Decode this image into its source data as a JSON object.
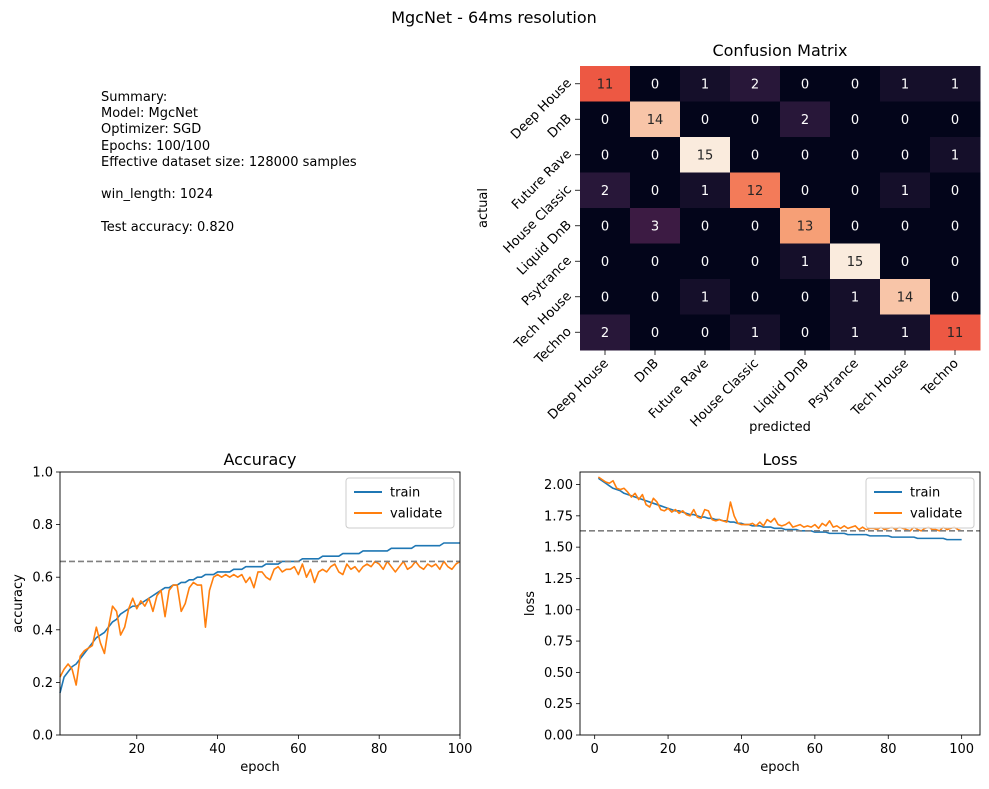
{
  "figure": {
    "suptitle": "MgcNet - 64ms resolution"
  },
  "summary": {
    "lines": [
      "Summary:",
      "Model: MgcNet",
      "Optimizer: SGD",
      "Epochs: 100/100",
      "Effective dataset size: 128000 samples",
      "",
      "win_length: 1024",
      "",
      "Test accuracy: 0.820"
    ]
  },
  "chart_data": [
    {
      "type": "heatmap",
      "title": "Confusion Matrix",
      "xlabel": "predicted",
      "ylabel": "actual",
      "x_categories": [
        "Deep House",
        "DnB",
        "Future Rave",
        "House Classic",
        "Liquid DnB",
        "Psytrance",
        "Tech House",
        "Techno"
      ],
      "y_categories": [
        "Deep House",
        "DnB",
        "Future Rave",
        "House Classic",
        "Liquid DnB",
        "Psytrance",
        "Tech House",
        "Techno"
      ],
      "values": [
        [
          11,
          0,
          1,
          2,
          0,
          0,
          1,
          1
        ],
        [
          0,
          14,
          0,
          0,
          2,
          0,
          0,
          0
        ],
        [
          0,
          0,
          15,
          0,
          0,
          0,
          0,
          1
        ],
        [
          2,
          0,
          1,
          12,
          0,
          0,
          1,
          0
        ],
        [
          0,
          3,
          0,
          0,
          13,
          0,
          0,
          0
        ],
        [
          0,
          0,
          0,
          0,
          1,
          15,
          0,
          0
        ],
        [
          0,
          0,
          1,
          0,
          0,
          1,
          14,
          0
        ],
        [
          2,
          0,
          0,
          1,
          0,
          1,
          1,
          11
        ]
      ],
      "colormap": "rocket"
    },
    {
      "type": "line",
      "title": "Accuracy",
      "xlabel": "epoch",
      "ylabel": "accuracy",
      "xlim": [
        1,
        100
      ],
      "ylim": [
        0,
        1
      ],
      "xticks": [
        20,
        40,
        60,
        80,
        100
      ],
      "yticks": [
        0.0,
        0.2,
        0.4,
        0.6,
        0.8,
        1.0
      ],
      "ytick_labels": [
        "0.0",
        "0.2",
        "0.4",
        "0.6",
        "0.8",
        "1.0"
      ],
      "reference_line": {
        "y": 0.66,
        "style": "dashed",
        "color": "#808080"
      },
      "legend_position": "top-right",
      "series": [
        {
          "name": "train",
          "color": "#1f77b4",
          "values": [
            0.16,
            0.22,
            0.24,
            0.26,
            0.27,
            0.29,
            0.31,
            0.33,
            0.35,
            0.37,
            0.38,
            0.39,
            0.41,
            0.43,
            0.44,
            0.46,
            0.47,
            0.48,
            0.49,
            0.49,
            0.5,
            0.51,
            0.52,
            0.53,
            0.54,
            0.55,
            0.56,
            0.56,
            0.57,
            0.57,
            0.58,
            0.58,
            0.59,
            0.59,
            0.6,
            0.6,
            0.61,
            0.61,
            0.61,
            0.62,
            0.62,
            0.62,
            0.62,
            0.63,
            0.63,
            0.63,
            0.64,
            0.64,
            0.64,
            0.64,
            0.64,
            0.65,
            0.65,
            0.65,
            0.65,
            0.66,
            0.66,
            0.66,
            0.66,
            0.66,
            0.67,
            0.67,
            0.67,
            0.67,
            0.67,
            0.68,
            0.68,
            0.68,
            0.68,
            0.68,
            0.69,
            0.69,
            0.69,
            0.69,
            0.69,
            0.7,
            0.7,
            0.7,
            0.7,
            0.7,
            0.7,
            0.7,
            0.71,
            0.71,
            0.71,
            0.71,
            0.71,
            0.71,
            0.72,
            0.72,
            0.72,
            0.72,
            0.72,
            0.72,
            0.72,
            0.73,
            0.73,
            0.73,
            0.73,
            0.73
          ]
        },
        {
          "name": "validate",
          "color": "#ff7f0e",
          "values": [
            0.22,
            0.25,
            0.27,
            0.25,
            0.19,
            0.3,
            0.32,
            0.33,
            0.34,
            0.41,
            0.35,
            0.31,
            0.41,
            0.49,
            0.47,
            0.38,
            0.41,
            0.48,
            0.52,
            0.48,
            0.51,
            0.49,
            0.52,
            0.47,
            0.53,
            0.55,
            0.45,
            0.55,
            0.57,
            0.57,
            0.47,
            0.5,
            0.56,
            0.58,
            0.57,
            0.57,
            0.41,
            0.55,
            0.6,
            0.61,
            0.6,
            0.61,
            0.6,
            0.61,
            0.6,
            0.61,
            0.58,
            0.6,
            0.56,
            0.62,
            0.62,
            0.6,
            0.59,
            0.63,
            0.64,
            0.62,
            0.63,
            0.63,
            0.64,
            0.61,
            0.65,
            0.6,
            0.63,
            0.58,
            0.62,
            0.63,
            0.62,
            0.64,
            0.65,
            0.62,
            0.61,
            0.65,
            0.63,
            0.64,
            0.62,
            0.64,
            0.65,
            0.64,
            0.66,
            0.65,
            0.63,
            0.66,
            0.64,
            0.62,
            0.64,
            0.66,
            0.63,
            0.64,
            0.66,
            0.64,
            0.63,
            0.65,
            0.64,
            0.65,
            0.63,
            0.66,
            0.64,
            0.63,
            0.65,
            0.66
          ]
        }
      ]
    },
    {
      "type": "line",
      "title": "Loss",
      "xlabel": "epoch",
      "ylabel": "loss",
      "xlim": [
        -4,
        105
      ],
      "ylim": [
        0,
        2.1
      ],
      "xticks": [
        0,
        20,
        40,
        60,
        80,
        100
      ],
      "yticks": [
        0.0,
        0.25,
        0.5,
        0.75,
        1.0,
        1.25,
        1.5,
        1.75,
        2.0
      ],
      "ytick_labels": [
        "0.00",
        "0.25",
        "0.50",
        "0.75",
        "1.00",
        "1.25",
        "1.50",
        "1.75",
        "2.00"
      ],
      "reference_line": {
        "y": 1.63,
        "style": "dashed",
        "color": "#808080"
      },
      "legend_position": "top-right",
      "series": [
        {
          "name": "train",
          "color": "#1f77b4",
          "values": [
            2.05,
            2.03,
            2.01,
            1.99,
            1.97,
            1.96,
            1.95,
            1.93,
            1.92,
            1.91,
            1.9,
            1.89,
            1.88,
            1.87,
            1.86,
            1.85,
            1.84,
            1.83,
            1.82,
            1.81,
            1.8,
            1.79,
            1.79,
            1.78,
            1.77,
            1.76,
            1.76,
            1.75,
            1.74,
            1.74,
            1.73,
            1.73,
            1.72,
            1.72,
            1.71,
            1.71,
            1.7,
            1.7,
            1.69,
            1.69,
            1.68,
            1.68,
            1.67,
            1.67,
            1.67,
            1.66,
            1.66,
            1.66,
            1.65,
            1.65,
            1.65,
            1.64,
            1.64,
            1.64,
            1.64,
            1.63,
            1.63,
            1.63,
            1.63,
            1.62,
            1.62,
            1.62,
            1.62,
            1.61,
            1.61,
            1.61,
            1.61,
            1.61,
            1.6,
            1.6,
            1.6,
            1.6,
            1.6,
            1.6,
            1.59,
            1.59,
            1.59,
            1.59,
            1.59,
            1.59,
            1.58,
            1.58,
            1.58,
            1.58,
            1.58,
            1.58,
            1.58,
            1.57,
            1.57,
            1.57,
            1.57,
            1.57,
            1.57,
            1.57,
            1.57,
            1.56,
            1.56,
            1.56,
            1.56,
            1.56
          ]
        },
        {
          "name": "validate",
          "color": "#ff7f0e",
          "values": [
            2.06,
            2.04,
            2.02,
            2.01,
            2.03,
            1.97,
            1.96,
            1.97,
            1.94,
            1.9,
            1.93,
            1.88,
            1.92,
            1.84,
            1.82,
            1.89,
            1.86,
            1.8,
            1.79,
            1.81,
            1.78,
            1.8,
            1.77,
            1.79,
            1.76,
            1.75,
            1.8,
            1.74,
            1.73,
            1.8,
            1.79,
            1.72,
            1.71,
            1.72,
            1.71,
            1.7,
            1.86,
            1.75,
            1.69,
            1.68,
            1.68,
            1.68,
            1.69,
            1.67,
            1.7,
            1.67,
            1.72,
            1.7,
            1.73,
            1.68,
            1.67,
            1.68,
            1.7,
            1.66,
            1.67,
            1.68,
            1.66,
            1.67,
            1.66,
            1.68,
            1.65,
            1.69,
            1.67,
            1.71,
            1.66,
            1.67,
            1.65,
            1.67,
            1.65,
            1.66,
            1.67,
            1.64,
            1.66,
            1.64,
            1.65,
            1.65,
            1.64,
            1.66,
            1.64,
            1.65,
            1.66,
            1.64,
            1.66,
            1.65,
            1.64,
            1.63,
            1.66,
            1.64,
            1.63,
            1.65,
            1.66,
            1.64,
            1.64,
            1.63,
            1.66,
            1.64,
            1.65,
            1.66,
            1.64,
            1.63
          ]
        }
      ]
    }
  ]
}
